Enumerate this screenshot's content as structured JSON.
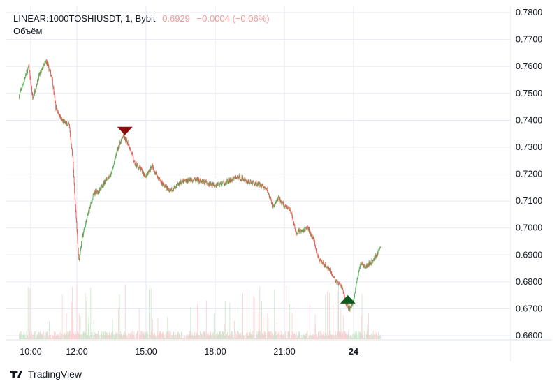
{
  "header": {
    "symbol": "LINEAR:1000TOSHIUSDT, 1, Bybit",
    "last_price": "0.6929",
    "change": "−0.0004 (−0.06%)",
    "volume_label": "Объём"
  },
  "footer": {
    "brand": "TradingView"
  },
  "colors": {
    "up": "#4caf50",
    "down": "#ef5350",
    "grid": "#e6eaf4",
    "sell_marker": "#8b0e0e",
    "buy_marker": "#0f5a1e",
    "volume_up": "#c8e6c9",
    "volume_down": "#ffcdd2"
  },
  "chart_data": {
    "type": "candlestick",
    "x_tick_labels": [
      "10:00",
      "12:00",
      "15:00",
      "18:00",
      "21:00",
      "24"
    ],
    "y_tick_labels": [
      "0.7800",
      "0.7700",
      "0.7600",
      "0.7500",
      "0.7400",
      "0.7300",
      "0.7200",
      "0.7100",
      "0.7000",
      "0.6900",
      "0.6800",
      "0.6700",
      "0.6600"
    ],
    "ylim": [
      0.66,
      0.78
    ],
    "grid": true,
    "price_path": [
      [
        "09:30",
        0.749
      ],
      [
        "09:45",
        0.756
      ],
      [
        "09:55",
        0.76
      ],
      [
        "10:05",
        0.748
      ],
      [
        "10:20",
        0.756
      ],
      [
        "10:40",
        0.762
      ],
      [
        "10:55",
        0.756
      ],
      [
        "11:05",
        0.745
      ],
      [
        "11:20",
        0.74
      ],
      [
        "11:40",
        0.738
      ],
      [
        "11:50",
        0.725
      ],
      [
        "11:55",
        0.71
      ],
      [
        "12:00",
        0.7
      ],
      [
        "12:05",
        0.688
      ],
      [
        "12:15",
        0.697
      ],
      [
        "12:30",
        0.706
      ],
      [
        "12:45",
        0.713
      ],
      [
        "13:00",
        0.714
      ],
      [
        "13:15",
        0.718
      ],
      [
        "13:30",
        0.72
      ],
      [
        "13:45",
        0.729
      ],
      [
        "14:00",
        0.734
      ],
      [
        "14:15",
        0.731
      ],
      [
        "14:30",
        0.724
      ],
      [
        "14:45",
        0.722
      ],
      [
        "15:00",
        0.719
      ],
      [
        "15:15",
        0.723
      ],
      [
        "15:30",
        0.719
      ],
      [
        "15:45",
        0.716
      ],
      [
        "16:00",
        0.714
      ],
      [
        "16:15",
        0.715
      ],
      [
        "16:30",
        0.717
      ],
      [
        "17:00",
        0.718
      ],
      [
        "17:30",
        0.717
      ],
      [
        "18:00",
        0.716
      ],
      [
        "18:30",
        0.717
      ],
      [
        "19:00",
        0.719
      ],
      [
        "19:30",
        0.717
      ],
      [
        "20:00",
        0.716
      ],
      [
        "20:15",
        0.714
      ],
      [
        "20:30",
        0.708
      ],
      [
        "20:45",
        0.711
      ],
      [
        "21:00",
        0.708
      ],
      [
        "21:15",
        0.707
      ],
      [
        "21:30",
        0.698
      ],
      [
        "21:45",
        0.699
      ],
      [
        "22:00",
        0.7
      ],
      [
        "22:15",
        0.696
      ],
      [
        "22:30",
        0.688
      ],
      [
        "22:45",
        0.686
      ],
      [
        "23:00",
        0.684
      ],
      [
        "23:15",
        0.68
      ],
      [
        "23:30",
        0.678
      ],
      [
        "23:40",
        0.672
      ],
      [
        "23:50",
        0.67
      ],
      [
        "00:00",
        0.673
      ],
      [
        "00:10",
        0.682
      ],
      [
        "00:20",
        0.687
      ],
      [
        "00:30",
        0.686
      ],
      [
        "00:45",
        0.687
      ],
      [
        "01:00",
        0.69
      ],
      [
        "01:10",
        0.6929
      ]
    ],
    "markers": [
      {
        "type": "sell",
        "time": "14:05",
        "price": 0.7355
      },
      {
        "type": "buy",
        "time": "23:45",
        "price": 0.6735
      }
    ]
  }
}
